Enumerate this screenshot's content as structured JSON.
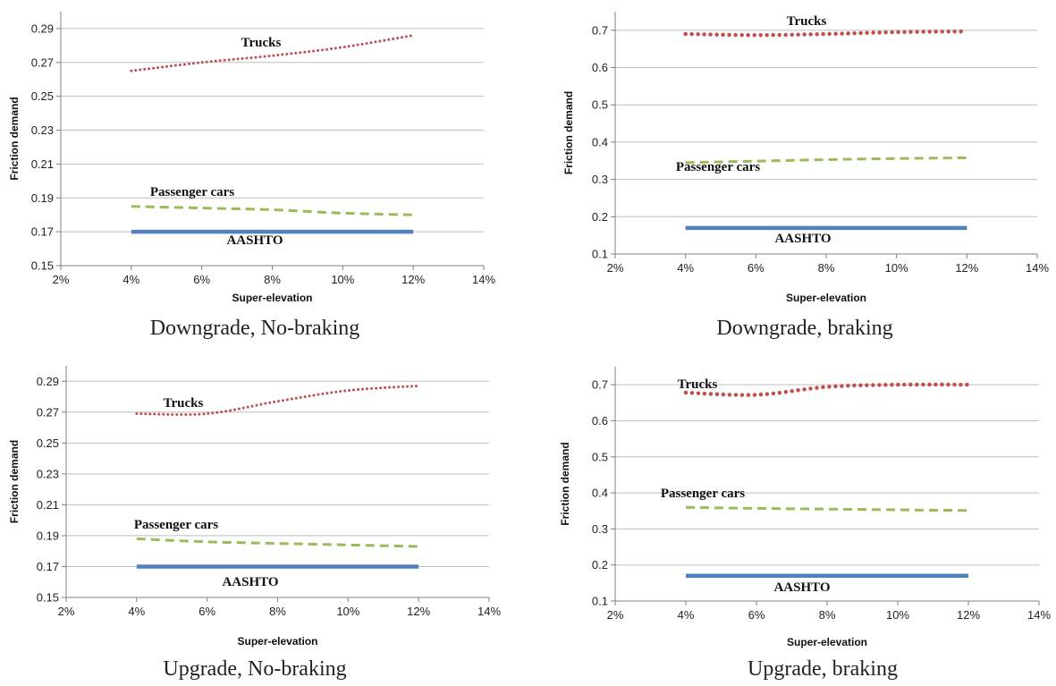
{
  "colors": {
    "trucks": "#C0504D",
    "passenger_cars": "#9BBB59",
    "aashto": "#4F81BD",
    "grid": "#BFBFBF",
    "axis": "#808080"
  },
  "captions": [
    "Downgrade, No-braking",
    "Downgrade, braking",
    "Upgrade, No-braking",
    "Upgrade, braking"
  ],
  "chart_data": [
    {
      "type": "line",
      "title": "",
      "caption": "Downgrade, No-braking",
      "xlabel": "Super-elevation",
      "ylabel": "Friction demand",
      "x_ticks": [
        "2%",
        "4%",
        "6%",
        "8%",
        "10%",
        "12%",
        "14%"
      ],
      "y_ticks": [
        "0.15",
        "0.17",
        "0.19",
        "0.21",
        "0.23",
        "0.25",
        "0.27",
        "0.29"
      ],
      "xlim": [
        2,
        14
      ],
      "ylim": [
        0.15,
        0.3
      ],
      "grid": "horizontal",
      "x": [
        4,
        6,
        8,
        10,
        12
      ],
      "series": [
        {
          "name": "Trucks",
          "values": [
            0.265,
            0.27,
            0.274,
            0.279,
            0.286
          ],
          "style": "dotted"
        },
        {
          "name": "Passenger cars",
          "values": [
            0.185,
            0.184,
            0.183,
            0.181,
            0.18
          ],
          "style": "dashed"
        },
        {
          "name": "AASHTO",
          "values": [
            0.17,
            0.17,
            0.17,
            0.17,
            0.17
          ],
          "style": "solid"
        }
      ]
    },
    {
      "type": "line",
      "title": "",
      "caption": "Downgrade, braking",
      "xlabel": "Super-elevation",
      "ylabel": "Friction demand",
      "x_ticks": [
        "2%",
        "4%",
        "6%",
        "8%",
        "10%",
        "12%",
        "14%"
      ],
      "y_ticks": [
        "0.1",
        "0.2",
        "0.3",
        "0.4",
        "0.5",
        "0.6",
        "0.7"
      ],
      "xlim": [
        2,
        14
      ],
      "ylim": [
        0.1,
        0.75
      ],
      "grid": "horizontal",
      "x": [
        4,
        6,
        8,
        10,
        12
      ],
      "series": [
        {
          "name": "Trucks",
          "values": [
            0.69,
            0.687,
            0.69,
            0.695,
            0.697
          ],
          "style": "dotted"
        },
        {
          "name": "Passenger cars",
          "values": [
            0.345,
            0.349,
            0.353,
            0.356,
            0.358
          ],
          "style": "dashed"
        },
        {
          "name": "AASHTO",
          "values": [
            0.17,
            0.17,
            0.17,
            0.17,
            0.17
          ],
          "style": "solid"
        }
      ]
    },
    {
      "type": "line",
      "title": "",
      "caption": "Upgrade, No-braking",
      "xlabel": "Super-elevation",
      "ylabel": "Friction demand",
      "x_ticks": [
        "2%",
        "4%",
        "6%",
        "8%",
        "10%",
        "12%",
        "14%"
      ],
      "y_ticks": [
        "0.15",
        "0.17",
        "0.19",
        "0.21",
        "0.23",
        "0.25",
        "0.27",
        "0.29"
      ],
      "xlim": [
        2,
        14
      ],
      "ylim": [
        0.15,
        0.3
      ],
      "grid": "horizontal",
      "x": [
        4,
        6,
        8,
        10,
        12
      ],
      "series": [
        {
          "name": "Trucks",
          "values": [
            0.269,
            0.269,
            0.277,
            0.284,
            0.287
          ],
          "style": "dotted"
        },
        {
          "name": "Passenger cars",
          "values": [
            0.188,
            0.186,
            0.185,
            0.184,
            0.183
          ],
          "style": "dashed"
        },
        {
          "name": "AASHTO",
          "values": [
            0.17,
            0.17,
            0.17,
            0.17,
            0.17
          ],
          "style": "solid"
        }
      ]
    },
    {
      "type": "line",
      "title": "",
      "caption": "Upgrade, braking",
      "xlabel": "Super-elevation",
      "ylabel": "Friction demand",
      "x_ticks": [
        "2%",
        "4%",
        "6%",
        "8%",
        "10%",
        "12%",
        "14%"
      ],
      "y_ticks": [
        "0.1",
        "0.2",
        "0.3",
        "0.4",
        "0.5",
        "0.6",
        "0.7"
      ],
      "xlim": [
        2,
        14
      ],
      "ylim": [
        0.1,
        0.75
      ],
      "grid": "horizontal",
      "x": [
        4,
        6,
        8,
        10,
        12
      ],
      "series": [
        {
          "name": "Trucks",
          "values": [
            0.678,
            0.672,
            0.694,
            0.7,
            0.7
          ],
          "style": "dotted"
        },
        {
          "name": "Passenger cars",
          "values": [
            0.36,
            0.357,
            0.355,
            0.353,
            0.351
          ],
          "style": "dashed"
        },
        {
          "name": "AASHTO",
          "values": [
            0.17,
            0.17,
            0.17,
            0.17,
            0.17
          ],
          "style": "solid"
        }
      ]
    }
  ]
}
